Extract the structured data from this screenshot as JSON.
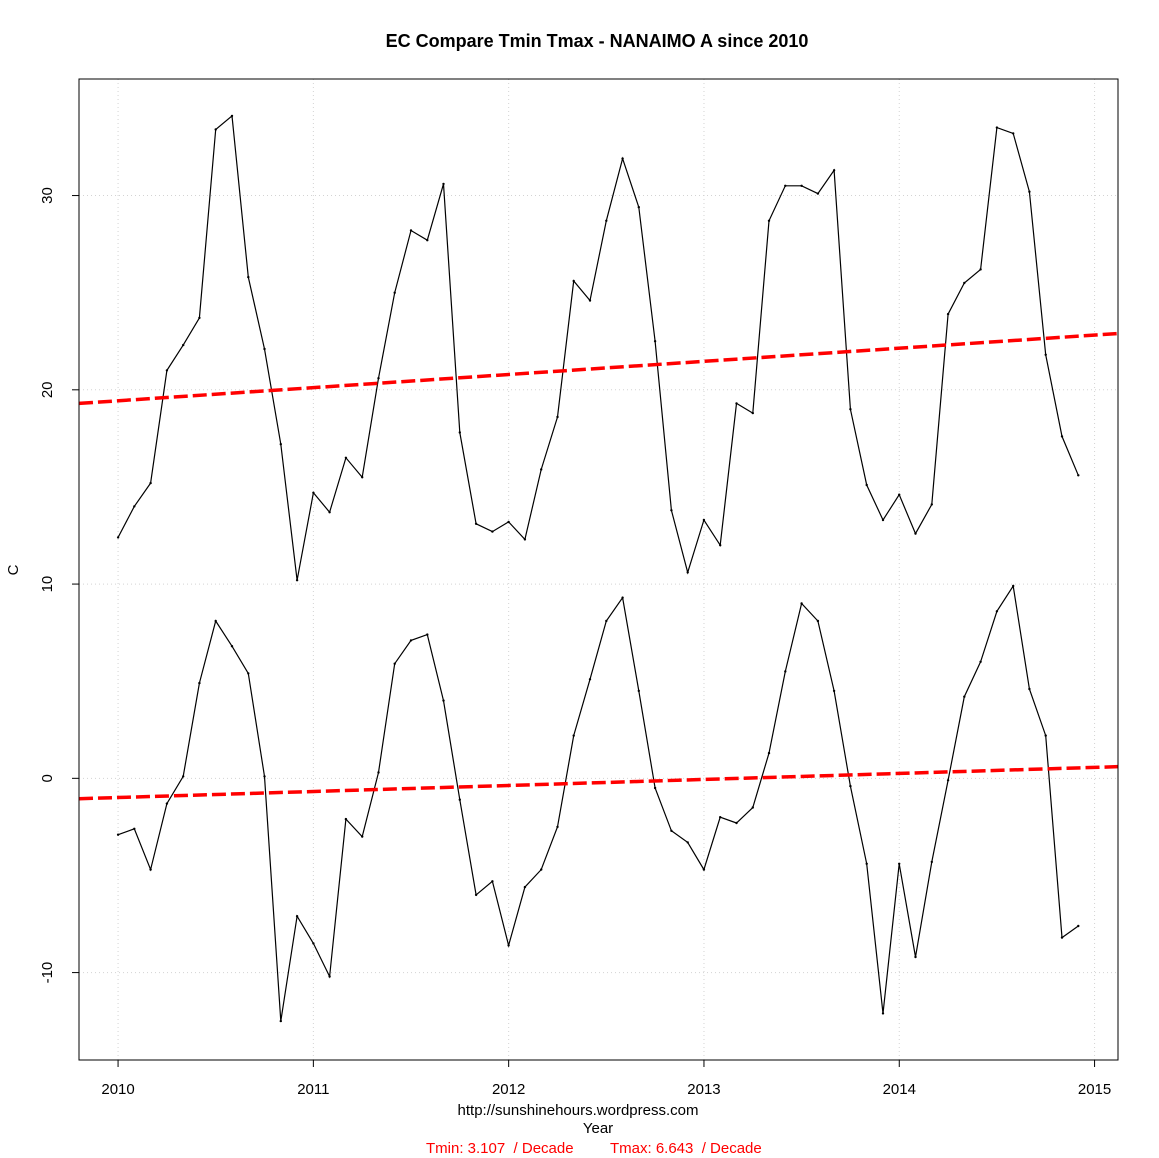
{
  "chart_data": {
    "type": "line",
    "title": "EC Compare Tmin Tmax - NANAIMO A since 2010",
    "xlabel": "Year",
    "ylabel": "C",
    "source": "http://sunshinehours.wordpress.com",
    "tmin_trend_text": "Tmin: 3.107  / Decade",
    "tmax_trend_text": "Tmax: 6.643  / Decade",
    "xlim": [
      2009.8,
      2015.12
    ],
    "ylim": [
      -14.5,
      36
    ],
    "grid": true,
    "x_ticks": [
      2010,
      2011,
      2012,
      2013,
      2014,
      2015
    ],
    "x_tick_labels": [
      "2010",
      "2011",
      "2012",
      "2013",
      "2014",
      "2015"
    ],
    "y_ticks": [
      -10,
      0,
      10,
      20,
      30
    ],
    "y_tick_labels": [
      "-10",
      "0",
      "10",
      "20",
      "30"
    ],
    "series": [
      {
        "name": "Tmax",
        "color": "#000000",
        "x_start": 2010,
        "x_step": 0.08333,
        "values": [
          12.4,
          14.0,
          15.2,
          21.0,
          22.3,
          23.7,
          33.4,
          34.1,
          25.8,
          22.1,
          17.2,
          10.2,
          14.7,
          13.7,
          16.5,
          15.5,
          20.6,
          25.0,
          28.2,
          27.7,
          30.6,
          17.8,
          13.1,
          12.7,
          13.2,
          12.3,
          15.9,
          18.6,
          25.6,
          24.6,
          28.7,
          31.9,
          29.4,
          22.5,
          13.8,
          10.6,
          13.3,
          12.0,
          19.3,
          18.8,
          28.7,
          30.5,
          30.5,
          30.1,
          31.3,
          19.0,
          15.1,
          13.3,
          14.6,
          12.6,
          14.1,
          23.9,
          25.5,
          26.2,
          33.5,
          33.2,
          30.2,
          21.8,
          17.6,
          15.6
        ]
      },
      {
        "name": "Tmin",
        "color": "#000000",
        "x_start": 2010,
        "x_step": 0.08333,
        "values": [
          -2.9,
          -2.6,
          -4.7,
          -1.3,
          0.1,
          4.9,
          8.1,
          6.8,
          5.4,
          0.1,
          -12.5,
          -7.1,
          -8.5,
          -10.2,
          -2.1,
          -3.0,
          0.3,
          5.9,
          7.1,
          7.4,
          4.0,
          -1.1,
          -6.0,
          -5.3,
          -8.6,
          -5.6,
          -4.7,
          -2.5,
          2.2,
          5.1,
          8.1,
          9.3,
          4.5,
          -0.5,
          -2.7,
          -3.3,
          -4.7,
          -2.0,
          -2.3,
          -1.5,
          1.3,
          5.5,
          9.0,
          8.1,
          4.5,
          -0.4,
          -4.4,
          -12.1,
          -4.4,
          -9.2,
          -4.3,
          -0.1,
          4.2,
          6.0,
          8.6,
          9.9,
          4.6,
          2.2,
          -8.2,
          -7.6
        ]
      }
    ],
    "trend_lines": [
      {
        "name": "Tmax trend",
        "color": "#ff0000",
        "x": [
          2009.8,
          2015.12
        ],
        "y": [
          19.3,
          22.9
        ]
      },
      {
        "name": "Tmin trend",
        "color": "#ff0000",
        "x": [
          2009.8,
          2015.12
        ],
        "y": [
          -1.05,
          0.6
        ]
      }
    ]
  }
}
